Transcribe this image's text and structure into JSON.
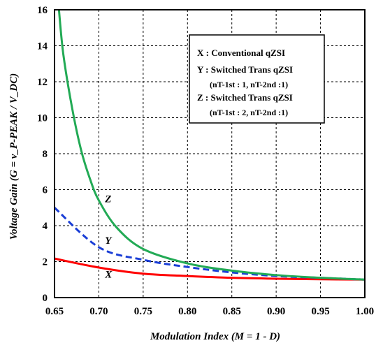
{
  "chart_data": {
    "type": "line",
    "xlabel": "Modulation Index (M = 1 - D)",
    "ylabel": "Voltage Gain (G = v_P-PEAK / V_DC)",
    "xlim": [
      0.65,
      1.0
    ],
    "ylim": [
      0,
      16
    ],
    "x_ticks": [
      "0.65",
      "0.70",
      "0.75",
      "0.80",
      "0.85",
      "0.90",
      "0.95",
      "1.00"
    ],
    "y_ticks": [
      "0",
      "2",
      "4",
      "6",
      "8",
      "10",
      "12",
      "14",
      "16"
    ],
    "grid": true,
    "legend_position": "top-right",
    "legend": {
      "x_line": "X : Conventional qZSI",
      "y_line": "Y : Switched Trans qZSI",
      "y_params": "(nT-1st : 1, nT-2nd :1)",
      "z_line": "Z : Switched Trans qZSI",
      "z_params": "(nT-1st : 2, nT-2nd :1)"
    },
    "series": [
      {
        "name": "X",
        "color": "#ff0000",
        "style": "solid",
        "x": [
          0.65,
          0.7,
          0.75,
          0.8,
          0.85,
          0.9,
          0.95,
          1.0
        ],
        "y": [
          2.17,
          1.67,
          1.33,
          1.2,
          1.1,
          1.05,
          1.02,
          1.0
        ]
      },
      {
        "name": "Y",
        "color": "#1a3ed6",
        "style": "dashed",
        "x": [
          0.65,
          0.7,
          0.75,
          0.8,
          0.85,
          0.9,
          0.95,
          1.0
        ],
        "y": [
          5.0,
          2.8,
          2.1,
          1.7,
          1.4,
          1.2,
          1.1,
          1.0
        ]
      },
      {
        "name": "Z",
        "color": "#22aa55",
        "style": "solid",
        "x": [
          0.655,
          0.66,
          0.67,
          0.68,
          0.69,
          0.7,
          0.72,
          0.75,
          0.8,
          0.85,
          0.9,
          0.95,
          1.0
        ],
        "y": [
          16.0,
          13.5,
          10.5,
          8.2,
          6.6,
          5.4,
          3.9,
          2.7,
          1.9,
          1.5,
          1.25,
          1.1,
          1.0
        ]
      }
    ],
    "curve_labels": [
      {
        "text": "X",
        "x": 0.707,
        "y": 1.1
      },
      {
        "text": "Y",
        "x": 0.707,
        "y": 3.0
      },
      {
        "text": "Z",
        "x": 0.707,
        "y": 5.3
      }
    ]
  }
}
